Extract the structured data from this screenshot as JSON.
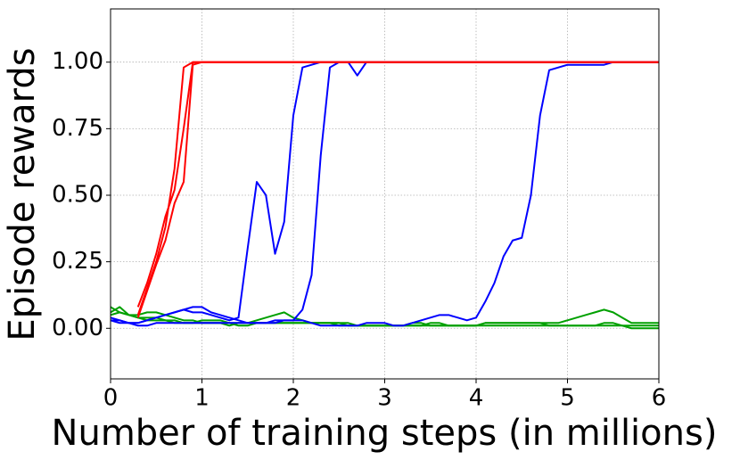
{
  "chart_data": {
    "type": "line",
    "xlabel": "Number of training steps (in millions)",
    "ylabel": "Episode rewards",
    "x": [
      0,
      0.1,
      0.2,
      0.3,
      0.4,
      0.5,
      0.6,
      0.7,
      0.8,
      0.9,
      1,
      1.1,
      1.2,
      1.3,
      1.4,
      1.5,
      1.6,
      1.7,
      1.8,
      1.9,
      2,
      2.1,
      2.2,
      2.3,
      2.4,
      2.5,
      2.6,
      2.7,
      2.8,
      2.9,
      3,
      3.1,
      3.2,
      3.3,
      3.4,
      3.5,
      3.6,
      3.7,
      3.8,
      3.9,
      4,
      4.1,
      4.2,
      4.3,
      4.4,
      4.5,
      4.6,
      4.7,
      4.8,
      4.9,
      5,
      5.1,
      5.2,
      5.3,
      5.4,
      5.5,
      5.6,
      5.7,
      5.8,
      5.9,
      6
    ],
    "xlim": [
      0,
      6
    ],
    "xticks": [
      0,
      1,
      2,
      3,
      4,
      5,
      6
    ],
    "ylim": [
      -0.19,
      1.2
    ],
    "yticks": [
      {
        "value": 0,
        "label": "0.00"
      },
      {
        "value": 0.25,
        "label": "0.25"
      },
      {
        "value": 0.5,
        "label": "0.50"
      },
      {
        "value": 0.75,
        "label": "0.75"
      },
      {
        "value": 1,
        "label": "1.00"
      }
    ],
    "grid": true,
    "series": [
      {
        "color": "#00a000",
        "values": [
          0.08,
          0.06,
          0.05,
          0.04,
          0.04,
          0.04,
          0.03,
          0.03,
          0.02,
          0.02,
          0.02,
          0.02,
          0.02,
          0.01,
          0.02,
          0.02,
          0.03,
          0.04,
          0.05,
          0.06,
          0.04,
          0.03,
          0.02,
          0.02,
          0.02,
          0.02,
          0.02,
          0.01,
          0.01,
          0.01,
          0.01,
          0.01,
          0.01,
          0.02,
          0.02,
          0.01,
          0.01,
          0.01,
          0.01,
          0.01,
          0.01,
          0.02,
          0.02,
          0.02,
          0.02,
          0.02,
          0.02,
          0.02,
          0.02,
          0.02,
          0.03,
          0.04,
          0.05,
          0.06,
          0.07,
          0.06,
          0.04,
          0.02,
          0.02,
          0.02,
          0.02
        ]
      },
      {
        "color": "#00a000",
        "values": [
          0.06,
          0.08,
          0.05,
          0.05,
          0.06,
          0.06,
          0.05,
          0.04,
          0.03,
          0.03,
          0.02,
          0.02,
          0.02,
          0.02,
          0.01,
          0.01,
          0.02,
          0.02,
          0.02,
          0.02,
          0.02,
          0.02,
          0.02,
          0.02,
          0.02,
          0.01,
          0.01,
          0.01,
          0.01,
          0.01,
          0.01,
          0.01,
          0.01,
          0.01,
          0.01,
          0.01,
          0.01,
          0.01,
          0.01,
          0.01,
          0.01,
          0.01,
          0.01,
          0.01,
          0.01,
          0.01,
          0.01,
          0.01,
          0.01,
          0.01,
          0.01,
          0.01,
          0.01,
          0.01,
          0.01,
          0.01,
          0.01,
          0,
          0,
          0,
          0
        ]
      },
      {
        "color": "#00a000",
        "values": [
          0.05,
          0.06,
          0.05,
          0.04,
          0.03,
          0.03,
          0.03,
          0.02,
          0.02,
          0.02,
          0.03,
          0.03,
          0.03,
          0.02,
          0.02,
          0.02,
          0.02,
          0.02,
          0.02,
          0.02,
          0.02,
          0.02,
          0.02,
          0.02,
          0.02,
          0.02,
          0.01,
          0.01,
          0.01,
          0.01,
          0.01,
          0.01,
          0.01,
          0.01,
          0.01,
          0.02,
          0.02,
          0.01,
          0.01,
          0.01,
          0.01,
          0.02,
          0.02,
          0.02,
          0.02,
          0.02,
          0.02,
          0.02,
          0.01,
          0.01,
          0.01,
          0.01,
          0.01,
          0.01,
          0.02,
          0.02,
          0.01,
          0.01,
          0.01,
          0.01,
          0.01
        ]
      },
      {
        "color": "#0000ff",
        "values": [
          0.04,
          0.03,
          0.02,
          0.02,
          0.03,
          0.04,
          0.05,
          0.06,
          0.07,
          0.06,
          0.06,
          0.05,
          0.04,
          0.03,
          0.04,
          0.3,
          0.55,
          0.5,
          0.28,
          0.4,
          0.8,
          0.98,
          0.99,
          1,
          1,
          1,
          1,
          1,
          1,
          1,
          1,
          1,
          1,
          1,
          1,
          1,
          1,
          1,
          1,
          1,
          1,
          1,
          1,
          1,
          1,
          1,
          1,
          1,
          1,
          1,
          1,
          1,
          1,
          1,
          1,
          1,
          1,
          1,
          1,
          1,
          1
        ]
      },
      {
        "color": "#0000ff",
        "values": [
          0.03,
          0.03,
          0.02,
          0.02,
          0.03,
          0.04,
          0.05,
          0.06,
          0.07,
          0.08,
          0.08,
          0.06,
          0.05,
          0.04,
          0.03,
          0.02,
          0.02,
          0.02,
          0.02,
          0.03,
          0.03,
          0.07,
          0.2,
          0.65,
          0.98,
          1,
          1,
          0.95,
          1,
          1,
          1,
          1,
          1,
          1,
          1,
          1,
          1,
          1,
          1,
          1,
          1,
          1,
          1,
          1,
          1,
          1,
          1,
          1,
          1,
          1,
          1,
          1,
          1,
          1,
          1,
          1,
          1,
          1,
          1,
          1,
          1
        ]
      },
      {
        "color": "#0000ff",
        "values": [
          0.03,
          0.02,
          0.02,
          0.01,
          0.01,
          0.02,
          0.02,
          0.02,
          0.02,
          0.02,
          0.02,
          0.02,
          0.02,
          0.02,
          0.02,
          0.02,
          0.02,
          0.02,
          0.03,
          0.03,
          0.03,
          0.03,
          0.02,
          0.01,
          0.01,
          0.01,
          0.01,
          0.01,
          0.02,
          0.02,
          0.02,
          0.01,
          0.01,
          0.02,
          0.03,
          0.04,
          0.05,
          0.05,
          0.04,
          0.03,
          0.04,
          0.1,
          0.17,
          0.27,
          0.33,
          0.34,
          0.5,
          0.8,
          0.97,
          0.98,
          0.99,
          0.99,
          0.99,
          0.99,
          0.99,
          1,
          1,
          1,
          1,
          1,
          1
        ]
      },
      {
        "color": "#ff0000",
        "values": [
          null,
          null,
          null,
          0.05,
          0.15,
          0.25,
          0.38,
          0.6,
          0.98,
          1,
          1,
          1,
          1,
          1,
          1,
          1,
          1,
          1,
          1,
          1,
          1,
          1,
          1,
          1,
          1,
          1,
          1,
          1,
          1,
          1,
          1,
          1,
          1,
          1,
          1,
          1,
          1,
          1,
          1,
          1,
          1,
          1,
          1,
          1,
          1,
          1,
          1,
          1,
          1,
          1,
          1,
          1,
          1,
          1,
          1,
          1,
          1,
          1,
          1,
          1,
          1
        ]
      },
      {
        "color": "#ff0000",
        "values": [
          null,
          null,
          null,
          0.08,
          0.17,
          0.28,
          0.42,
          0.52,
          0.75,
          1,
          1,
          1,
          1,
          1,
          1,
          1,
          1,
          1,
          1,
          1,
          1,
          1,
          1,
          1,
          1,
          1,
          1,
          1,
          1,
          1,
          1,
          1,
          1,
          1,
          1,
          1,
          1,
          1,
          1,
          1,
          1,
          1,
          1,
          1,
          1,
          1,
          1,
          1,
          1,
          1,
          1,
          1,
          1,
          1,
          1,
          1,
          1,
          1,
          1,
          1,
          1
        ]
      },
      {
        "color": "#ff0000",
        "values": [
          null,
          null,
          null,
          0.04,
          0.14,
          0.24,
          0.33,
          0.47,
          0.55,
          0.99,
          1,
          1,
          1,
          1,
          1,
          1,
          1,
          1,
          1,
          1,
          1,
          1,
          1,
          1,
          1,
          1,
          1,
          1,
          1,
          1,
          1,
          1,
          1,
          1,
          1,
          1,
          1,
          1,
          1,
          1,
          1,
          1,
          1,
          1,
          1,
          1,
          1,
          1,
          1,
          1,
          1,
          1,
          1,
          1,
          1,
          1,
          1,
          1,
          1,
          1,
          1
        ]
      }
    ]
  }
}
